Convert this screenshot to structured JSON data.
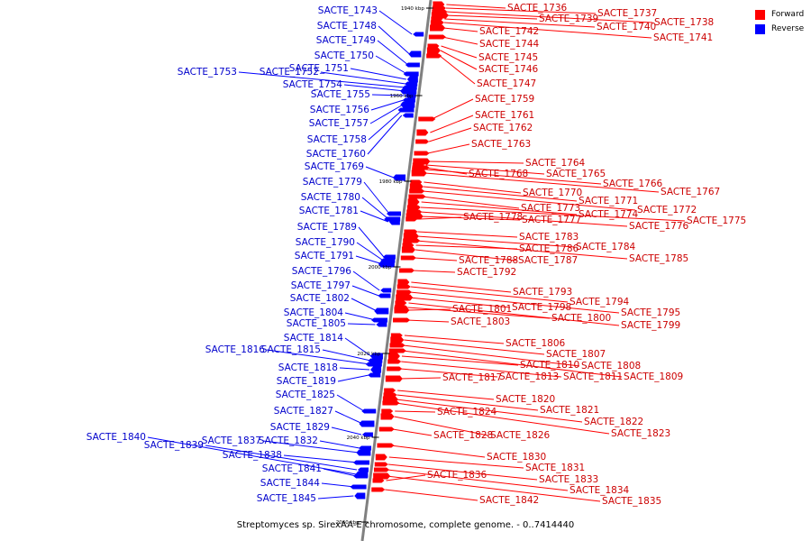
{
  "caption": "Streptomyces sp. SirexAA-E chromosome, complete genome. - 0..7414440",
  "legend": [
    {
      "label": "Forward",
      "color": "#ff0000"
    },
    {
      "label": "Reverse",
      "color": "#0000ff"
    }
  ],
  "colors": {
    "forward": "#ff0000",
    "reverse": "#0000ff",
    "forward_text": "#cc0000",
    "reverse_text": "#0000cc",
    "backbone": "#808080"
  },
  "ticks": [
    "1940 kbp",
    "1960 kbp",
    "1980 kbp",
    "2000 kbp",
    "2020 kbp",
    "2040 kbp",
    "2060 kbp"
  ],
  "forward_genes": [
    "SACTE_1736",
    "SACTE_1737",
    "SACTE_1738",
    "SACTE_1739",
    "SACTE_1740",
    "SACTE_1741",
    "SACTE_1742",
    "SACTE_1744",
    "SACTE_1745",
    "SACTE_1746",
    "SACTE_1747",
    "SACTE_1759",
    "SACTE_1761",
    "SACTE_1762",
    "SACTE_1763",
    "SACTE_1764",
    "SACTE_1765",
    "SACTE_1766",
    "SACTE_1767",
    "SACTE_1768",
    "SACTE_1770",
    "SACTE_1771",
    "SACTE_1772",
    "SACTE_1773",
    "SACTE_1774",
    "SACTE_1775",
    "SACTE_1776",
    "SACTE_1777",
    "SACTE_1778",
    "SACTE_1783",
    "SACTE_1784",
    "SACTE_1785",
    "SACTE_1786",
    "SACTE_1787",
    "SACTE_1788",
    "SACTE_1792",
    "SACTE_1793",
    "SACTE_1794",
    "SACTE_1795",
    "SACTE_1798",
    "SACTE_1799",
    "SACTE_1800",
    "SACTE_1801",
    "SACTE_1803",
    "SACTE_1806",
    "SACTE_1807",
    "SACTE_1808",
    "SACTE_1809",
    "SACTE_1810",
    "SACTE_1811",
    "SACTE_1813",
    "SACTE_1817",
    "SACTE_1820",
    "SACTE_1821",
    "SACTE_1822",
    "SACTE_1823",
    "SACTE_1824",
    "SACTE_1826",
    "SACTE_1828",
    "SACTE_1830",
    "SACTE_1831",
    "SACTE_1833",
    "SACTE_1834",
    "SACTE_1835",
    "SACTE_1836",
    "SACTE_1842"
  ],
  "reverse_genes": [
    "SACTE_1743",
    "SACTE_1748",
    "SACTE_1749",
    "SACTE_1750",
    "SACTE_1751",
    "SACTE_1752",
    "SACTE_1753",
    "SACTE_1754",
    "SACTE_1755",
    "SACTE_1756",
    "SACTE_1757",
    "SACTE_1758",
    "SACTE_1760",
    "SACTE_1769",
    "SACTE_1779",
    "SACTE_1780",
    "SACTE_1781",
    "SACTE_1789",
    "SACTE_1790",
    "SACTE_1791",
    "SACTE_1796",
    "SACTE_1797",
    "SACTE_1802",
    "SACTE_1804",
    "SACTE_1805",
    "SACTE_1814",
    "SACTE_1815",
    "SACTE_1816",
    "SACTE_1818",
    "SACTE_1819",
    "SACTE_1825",
    "SACTE_1827",
    "SACTE_1829",
    "SACTE_1832",
    "SACTE_1837",
    "SACTE_1838",
    "SACTE_1839",
    "SACTE_1840",
    "SACTE_1841",
    "SACTE_1844",
    "SACTE_1845"
  ]
}
